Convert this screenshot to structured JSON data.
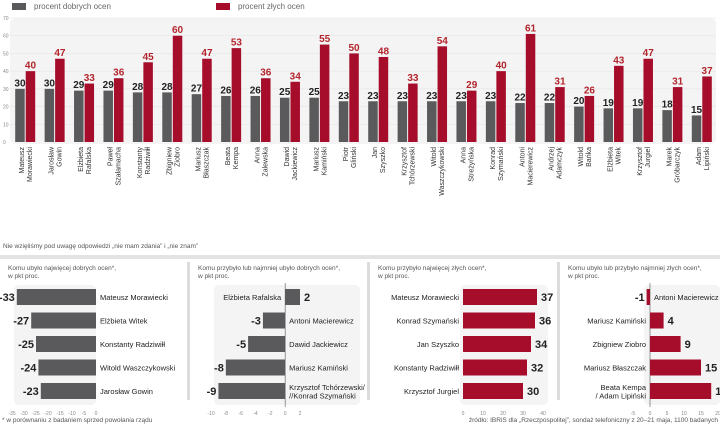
{
  "legend": {
    "good_label": "procent dobrych ocen",
    "bad_label": "procent złych ocen"
  },
  "colors": {
    "good": "#5a5a5c",
    "bad": "#a50d2b",
    "bad_text": "#b3252d",
    "good_text": "#222222",
    "plot_bg": "#f4f4f4",
    "grid": "#e6e6e6"
  },
  "note": "Nie wzięliśmy pod uwagę odpowiedzi „nie mam zdania” i „nie znam”",
  "footnote": "* w porównaniu z badaniem sprzed powołania rządu",
  "source": "źródło: IBRiS dla „Rzeczpospolitej”, sondaż telefoniczny z 20–21 maja, 1100 badanych",
  "chart_data": [
    {
      "type": "bar",
      "title": "",
      "xlabel": "",
      "ylabel": "",
      "ylim": [
        0,
        70
      ],
      "yticks": [
        0,
        10,
        20,
        30,
        40,
        50,
        60,
        70
      ],
      "grid": true,
      "legend": "top-left",
      "categories": [
        [
          "Mateusz",
          "Morawiecki"
        ],
        [
          "Jarosław",
          "Gowin"
        ],
        [
          "Elżbieta",
          "Rafalska"
        ],
        [
          "Paweł",
          "Szałamacha"
        ],
        [
          "Konstanty",
          "Radziwiłł"
        ],
        [
          "Zbigniew",
          "Ziobro"
        ],
        [
          "Mariusz",
          "Błaszczak"
        ],
        [
          "Beata",
          "Kempa"
        ],
        [
          "Anna",
          "Zalewska"
        ],
        [
          "Dawid",
          "Jackiewicz"
        ],
        [
          "Mariusz",
          "Kamiński"
        ],
        [
          "Piotr",
          "Gliński"
        ],
        [
          "Jan",
          "Szyszko"
        ],
        [
          "Krzysztof",
          "Tchórzewski"
        ],
        [
          "Witold",
          "Waszczykowski"
        ],
        [
          "Anna",
          "Streżyńska"
        ],
        [
          "Konrad",
          "Szymański"
        ],
        [
          "Antoni",
          "Macierewicz"
        ],
        [
          "Andrzej",
          "Adamczyk"
        ],
        [
          "Witold",
          "Bańka"
        ],
        [
          "Elżbieta",
          "Witek"
        ],
        [
          "Krzysztof",
          "Jurgiel"
        ],
        [
          "Marek",
          "Gróbarczyk"
        ],
        [
          "Adam",
          "Lipiński"
        ]
      ],
      "series": [
        {
          "name": "procent dobrych ocen",
          "values": [
            30,
            30,
            29,
            29,
            28,
            28,
            27,
            26,
            26,
            25,
            25,
            23,
            23,
            23,
            23,
            23,
            23,
            22,
            22,
            20,
            19,
            19,
            18,
            15
          ]
        },
        {
          "name": "procent złych ocen",
          "values": [
            40,
            47,
            33,
            36,
            45,
            60,
            47,
            53,
            36,
            34,
            55,
            50,
            48,
            33,
            54,
            29,
            40,
            61,
            31,
            26,
            43,
            47,
            31,
            37
          ]
        }
      ]
    },
    {
      "type": "bar",
      "orientation": "horizontal",
      "title": "Komu ubyło najwięcej dobrych ocen*,",
      "subtitle": "w pkt proc.",
      "series_color": "good",
      "xlim": [
        -35,
        0
      ],
      "xticks": [
        -35,
        -30,
        -25,
        -20,
        -15,
        -10,
        -5,
        0
      ],
      "categories": [
        "Mateusz Morawiecki",
        "Elżbieta Witek",
        "Konstanty Radziwiłł",
        "Witold Waszczykowski",
        "Jarosław Gowin"
      ],
      "values": [
        -33,
        -27,
        -25,
        -24,
        -23
      ]
    },
    {
      "type": "bar",
      "orientation": "horizontal",
      "title": "Komu przybyło lub najmniej ubyło dobrych ocen*,",
      "subtitle": "w pkt proc.",
      "series_color": "good",
      "xlim": [
        -10,
        2
      ],
      "xticks": [
        -10,
        -8,
        -6,
        -4,
        -2,
        0,
        2
      ],
      "categories": [
        "Elżbieta Rafalska",
        "Antoni Macierewicz",
        "Dawid Jackiewicz",
        "Mariusz Kamiński",
        "Krzysztof Tchórzewski / /Konrad Szymański"
      ],
      "values": [
        2,
        -3,
        -5,
        -8,
        -9
      ]
    },
    {
      "type": "bar",
      "orientation": "horizontal",
      "title": "Komu przybyło najwięcej złych ocen*,",
      "subtitle": "w pkt proc.",
      "series_color": "bad",
      "xlim": [
        0,
        40
      ],
      "xticks": [
        0,
        10,
        20,
        30,
        40
      ],
      "categories": [
        "Mateusz Morawiecki",
        "Konrad Szymański",
        "Jan Szyszko",
        "Konstanty Radziwiłł",
        "Krzysztof Jurgiel"
      ],
      "values": [
        37,
        36,
        34,
        32,
        30
      ]
    },
    {
      "type": "bar",
      "orientation": "horizontal",
      "title": "Komu ubyło lub przybyło najmniej złych ocen*,",
      "subtitle": "w pkt proc.",
      "series_color": "bad",
      "xlim": [
        -5,
        20
      ],
      "xticks": [
        -5,
        0,
        5,
        10,
        15,
        20
      ],
      "categories": [
        "Antoni Macierewicz",
        "Mariusz Kamiński",
        "Zbigniew Ziobro",
        "Mariusz Błaszczak",
        "Beata Kempa / Adam Lipiński"
      ],
      "values": [
        -1,
        4,
        9,
        15,
        18
      ]
    }
  ]
}
